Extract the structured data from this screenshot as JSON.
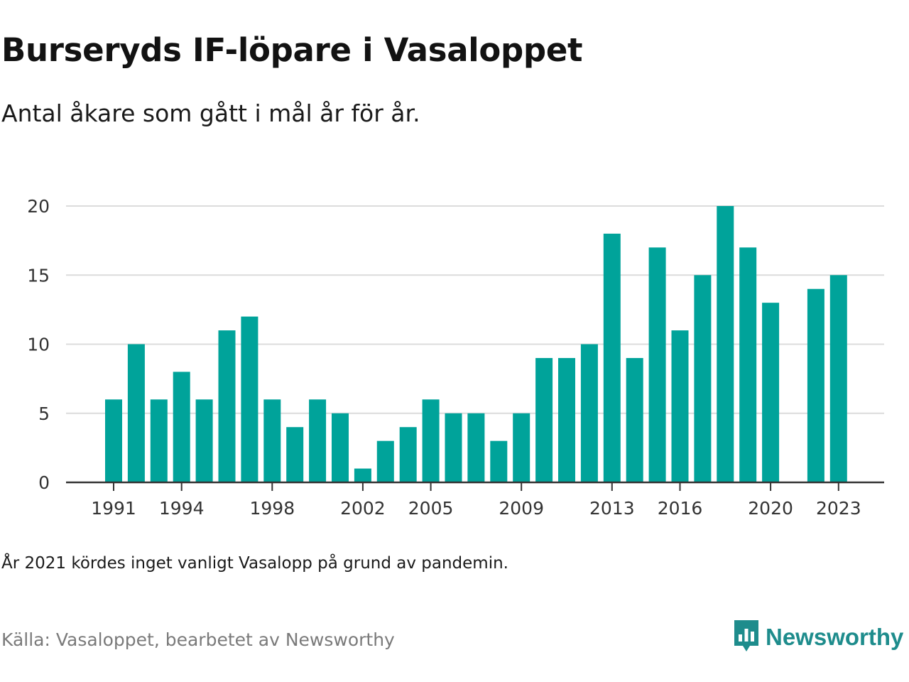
{
  "header": {
    "title": "Burseryds IF-löpare i Vasaloppet",
    "subtitle": "Antal åkare som gått i mål år för år."
  },
  "footer": {
    "note": "År 2021 kördes inget vanligt Vasalopp på grund av pandemin.",
    "source": "Källa: Vasaloppet, bearbetet av Newsworthy",
    "brand_name": "Newsworthy",
    "brand_icon": "newsworthy-logo-icon"
  },
  "colors": {
    "bar": "#00a39a",
    "grid": "#dcdcdc",
    "axis": "#333333",
    "brand": "#1e8c8c"
  },
  "chart_data": {
    "type": "bar",
    "title": "Burseryds IF-löpare i Vasaloppet",
    "subtitle": "Antal åkare som gått i mål år för år.",
    "xlabel": "",
    "ylabel": "",
    "categories": [
      1991,
      1992,
      1993,
      1994,
      1995,
      1996,
      1997,
      1998,
      1999,
      2000,
      2001,
      2002,
      2003,
      2004,
      2005,
      2006,
      2007,
      2008,
      2009,
      2010,
      2011,
      2012,
      2013,
      2014,
      2015,
      2016,
      2017,
      2018,
      2019,
      2020,
      2021,
      2022,
      2023
    ],
    "values": [
      6,
      10,
      6,
      8,
      6,
      11,
      12,
      6,
      4,
      6,
      5,
      1,
      3,
      4,
      6,
      5,
      5,
      3,
      5,
      9,
      9,
      10,
      18,
      9,
      17,
      11,
      15,
      20,
      17,
      13,
      null,
      14,
      15
    ],
    "x_tick_labels": [
      "1991",
      "1994",
      "1998",
      "2002",
      "2005",
      "2009",
      "2013",
      "2016",
      "2020",
      "2023"
    ],
    "y_ticks": [
      0,
      5,
      10,
      15,
      20
    ],
    "ylim": [
      0,
      20
    ],
    "grid": true,
    "legend": "none"
  }
}
